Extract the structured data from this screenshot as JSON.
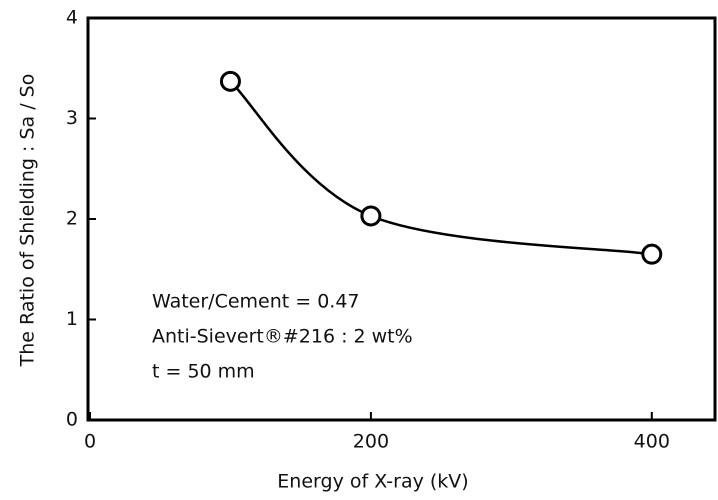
{
  "chart_data": {
    "type": "line",
    "x_label": "Energy of X-ray  (kV)",
    "y_label": "The Ratio of Shielding : Sa / So",
    "x": [
      100,
      200,
      400
    ],
    "series": [
      {
        "name": "Sa / So",
        "color": "#000000",
        "values": [
          3.37,
          2.03,
          1.65
        ]
      }
    ],
    "xlim": [
      0,
      445
    ],
    "ylim": [
      0,
      4
    ],
    "xticks": [
      0,
      200,
      400
    ],
    "yticks": [
      0,
      1,
      2,
      3,
      4
    ],
    "annotations": [
      "Water/Cement = 0.47",
      "Anti-Sievert®#216 : 2 wt%",
      "t = 50 mm"
    ]
  }
}
